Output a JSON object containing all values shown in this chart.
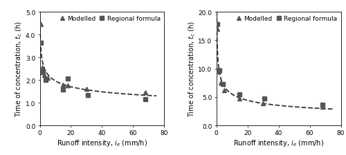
{
  "left": {
    "modelled_x": [
      0.5,
      1.5,
      3.0,
      5.0,
      15.0,
      18.0,
      30.0,
      68.0
    ],
    "modelled_y": [
      4.45,
      2.55,
      2.2,
      2.1,
      1.8,
      1.75,
      1.6,
      1.45
    ],
    "regional_x": [
      0.5,
      2.0,
      4.0,
      15.0,
      18.0,
      31.0,
      68.0
    ],
    "regional_y": [
      3.65,
      2.35,
      2.0,
      1.57,
      2.05,
      1.35,
      1.15
    ],
    "ylim": [
      0.0,
      5.0
    ],
    "ytick_labels": [
      "0.0",
      "1.0",
      "2.0",
      "3.0",
      "4.0",
      "5.0"
    ],
    "yticks": [
      0.0,
      1.0,
      2.0,
      3.0,
      4.0,
      5.0
    ],
    "xlim": [
      0,
      80
    ],
    "xticks": [
      0,
      20,
      40,
      60,
      80
    ],
    "ylabel": "Time of concentration, $t_c$ (h)",
    "xlabel": "Runoff intensity, $i_e$ (mm/h)"
  },
  "right": {
    "modelled_x": [
      0.5,
      1.5,
      3.0,
      5.0,
      15.0,
      30.0,
      68.0
    ],
    "modelled_y": [
      17.0,
      9.5,
      7.5,
      6.2,
      4.7,
      3.9,
      3.3
    ],
    "regional_x": [
      0.5,
      2.0,
      4.0,
      15.0,
      31.0,
      68.0
    ],
    "regional_y": [
      17.8,
      9.7,
      7.3,
      5.5,
      4.7,
      3.6
    ],
    "ylim": [
      0.0,
      20.0
    ],
    "ytick_labels": [
      "0.0",
      "5.0",
      "10.0",
      "15.0",
      "20.0"
    ],
    "yticks": [
      0.0,
      5.0,
      10.0,
      15.0,
      20.0
    ],
    "xlim": [
      0,
      80
    ],
    "xticks": [
      0,
      20,
      40,
      60,
      80
    ],
    "ylabel": "Time of concentration, $t_c$ (h)",
    "xlabel": "Runoff intensity, $i_e$ (mm/h)"
  },
  "marker_modelled": "^",
  "marker_regional": "s",
  "marker_color": "#555555",
  "marker_size": 4.5,
  "curve_color": "#333333",
  "curve_lw": 1.3,
  "legend_fontsize": 6.5,
  "tick_fontsize": 6.5,
  "label_fontsize": 7
}
